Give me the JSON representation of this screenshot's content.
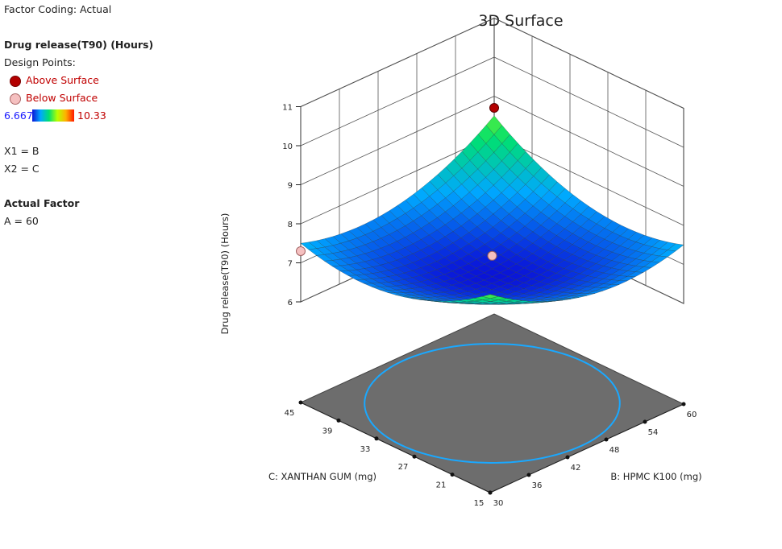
{
  "legend": {
    "factor_coding": "Factor Coding: Actual",
    "response": "Drug release(T90) (Hours)",
    "design_points": "Design Points:",
    "above": "Above Surface",
    "below": "Below Surface",
    "color_min": "6.667",
    "color_max": "10.33",
    "x1": "X1 = B",
    "x2": "X2 = C",
    "actual_factor": "Actual Factor",
    "a_value": "A = 60",
    "colors": {
      "above": "#b30000",
      "below": "#f5c0c0"
    }
  },
  "chart_data": {
    "type": "surface",
    "title": "3D Surface",
    "zlabel": "Drug release(T90) (Hours)",
    "xlabel": "B: HPMC K100 (mg)",
    "ylabel": "C: XANTHAN GUM (mg)",
    "x_ticks": [
      "30",
      "36",
      "42",
      "48",
      "54",
      "60"
    ],
    "y_ticks": [
      "15",
      "21",
      "27",
      "33",
      "39",
      "45"
    ],
    "z_ticks": [
      "6",
      "7",
      "8",
      "9",
      "10",
      "11"
    ],
    "xlim": [
      30,
      60
    ],
    "ylim": [
      15,
      45
    ],
    "zlim": [
      6,
      11
    ],
    "color_range": [
      6.667,
      10.33
    ],
    "surface_corners": {
      "B30_C15": 10.33,
      "B60_C15": 8.0,
      "B30_C45": 8.0,
      "B60_C45": 8.0
    },
    "surface_min": 6.667,
    "design_points": [
      {
        "B": 45,
        "C": 30,
        "value": 7.2,
        "position": "below"
      },
      {
        "B": 60,
        "C": 45,
        "value": 8.7,
        "position": "above"
      },
      {
        "B": 30,
        "C": 45,
        "value": 7.3,
        "position": "below"
      }
    ]
  }
}
